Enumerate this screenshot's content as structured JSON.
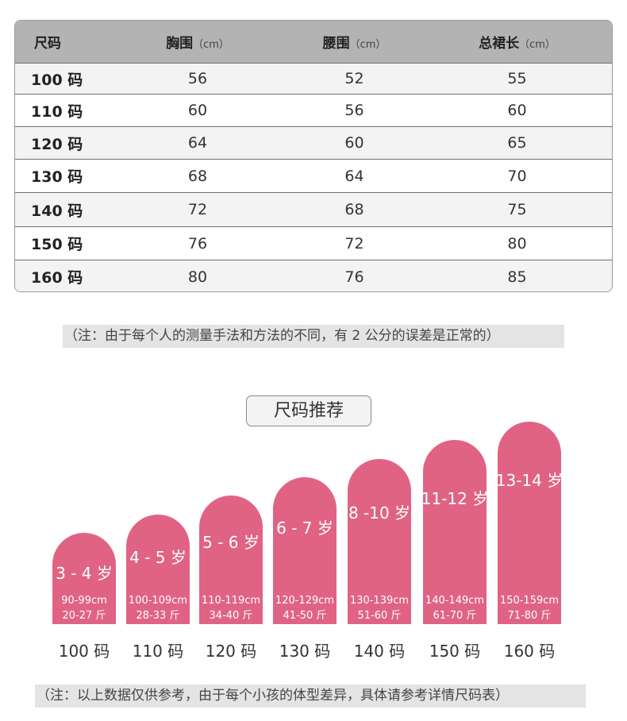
{
  "size_table": {
    "headers": [
      {
        "label": "尺码",
        "unit": ""
      },
      {
        "label": "胸围",
        "unit": "（cm）"
      },
      {
        "label": "腰围",
        "unit": "（cm）"
      },
      {
        "label": "总裙长",
        "unit": "（cm）"
      }
    ],
    "rows": [
      [
        "100 码",
        "56",
        "52",
        "55"
      ],
      [
        "110 码",
        "60",
        "56",
        "60"
      ],
      [
        "120 码",
        "64",
        "60",
        "65"
      ],
      [
        "130 码",
        "68",
        "64",
        "70"
      ],
      [
        "140 码",
        "72",
        "68",
        "75"
      ],
      [
        "150 码",
        "76",
        "72",
        "80"
      ],
      [
        "160 码",
        "80",
        "76",
        "85"
      ]
    ]
  },
  "note_measurement": "（注：由于每个人的测量手法和方法的不同，有 2 公分的误差是正常的）",
  "recommend_title": "尺码推荐",
  "recommendations": [
    {
      "age": "3 - 4 岁",
      "height": "90-99cm",
      "weight": "20-27 斤",
      "size": "100 码"
    },
    {
      "age": "4 - 5 岁",
      "height": "100-109cm",
      "weight": "28-33 斤",
      "size": "110 码"
    },
    {
      "age": "5 - 6 岁",
      "height": "110-119cm",
      "weight": "34-40 斤",
      "size": "120 码"
    },
    {
      "age": "6 - 7 岁",
      "height": "120-129cm",
      "weight": "41-50 斤",
      "size": "130 码"
    },
    {
      "age": "8 -10 岁",
      "height": "130-139cm",
      "weight": "51-60 斤",
      "size": "140 码"
    },
    {
      "age": "11-12 岁",
      "height": "140-149cm",
      "weight": "61-70 斤",
      "size": "150 码"
    },
    {
      "age": "13-14 岁",
      "height": "150-159cm",
      "weight": "71-80 斤",
      "size": "160 码"
    }
  ],
  "note_reference": "（注：以上数据仅供参考，由于每个小孩的体型差异，具体请参考详情尺码表）",
  "colors": {
    "bar": "#e06384",
    "header_bg": "#b3b3b3",
    "note_bg": "#e4e4e4"
  }
}
